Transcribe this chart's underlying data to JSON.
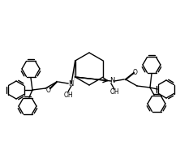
{
  "figsize": [
    2.22,
    1.74
  ],
  "dpi": 100,
  "bg_color": "#ffffff",
  "line_color": "#000000",
  "lw": 1.0,
  "xlim": [
    0,
    222
  ],
  "ylim": [
    0,
    174
  ]
}
